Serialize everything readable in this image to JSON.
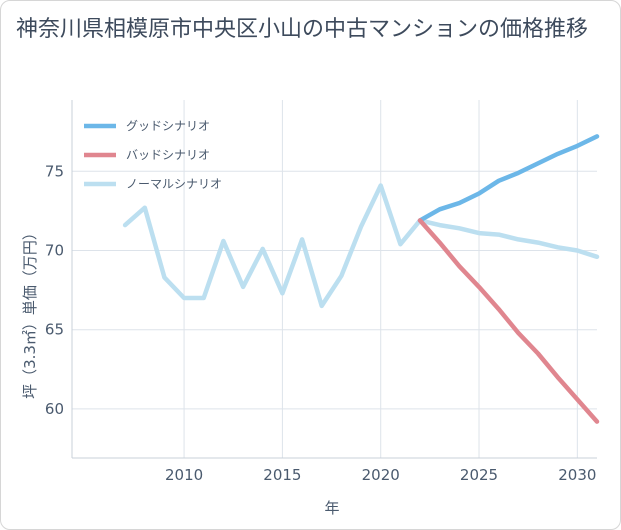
{
  "chart_data": {
    "type": "line",
    "title": "神奈川県相模原市中央区小山の中古マンションの価格推移",
    "xlabel": "年",
    "ylabel": "坪（3.3㎡）単価（万円）",
    "xlim": [
      2004.3,
      2031
    ],
    "ylim": [
      56.9,
      79.5
    ],
    "xticks": [
      2010,
      2015,
      2020,
      2025,
      2030
    ],
    "yticks": [
      60,
      65,
      70,
      75
    ],
    "grid": true,
    "legend_position": "top-left",
    "series": [
      {
        "name": "グッドシナリオ",
        "color": "#6cb7e8",
        "x": [
          2022,
          2023,
          2024,
          2025,
          2026,
          2027,
          2028,
          2029,
          2030,
          2031
        ],
        "y": [
          71.9,
          72.6,
          73.0,
          73.6,
          74.4,
          74.9,
          75.5,
          76.1,
          76.6,
          77.2
        ]
      },
      {
        "name": "バッドシナリオ",
        "color": "#e0868f",
        "x": [
          2022,
          2023,
          2024,
          2025,
          2026,
          2027,
          2028,
          2029,
          2030,
          2031
        ],
        "y": [
          71.9,
          70.5,
          69.0,
          67.7,
          66.3,
          64.8,
          63.5,
          62.0,
          60.6,
          59.2
        ]
      },
      {
        "name": "ノーマルシナリオ",
        "color": "#bcdff0",
        "x": [
          2007,
          2008,
          2009,
          2010,
          2011,
          2012,
          2013,
          2014,
          2015,
          2016,
          2017,
          2018,
          2019,
          2020,
          2021,
          2022,
          2023,
          2024,
          2025,
          2026,
          2027,
          2028,
          2029,
          2030,
          2031
        ],
        "y": [
          71.6,
          72.7,
          68.3,
          67.0,
          67.0,
          70.6,
          67.7,
          70.1,
          67.3,
          70.7,
          66.5,
          68.4,
          71.5,
          74.1,
          70.4,
          71.9,
          71.6,
          71.4,
          71.1,
          71.0,
          70.7,
          70.5,
          70.2,
          70.0,
          69.6
        ]
      }
    ]
  }
}
